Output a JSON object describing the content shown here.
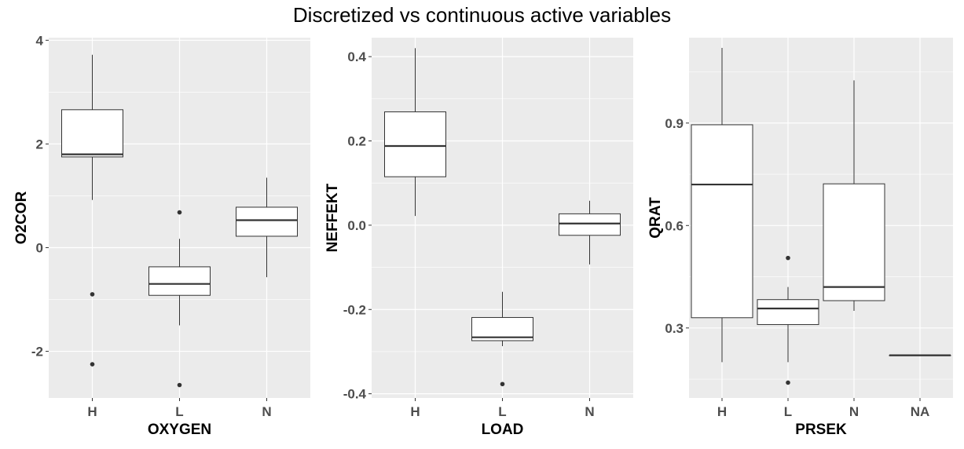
{
  "title": "Discretized vs continuous active variables",
  "colors": {
    "panel_background": "#ebebeb",
    "grid_major": "#ffffff",
    "box_fill": "#ffffff",
    "box_line": "#333333",
    "outlier": "#333333"
  },
  "chart_data": [
    {
      "type": "boxplot",
      "xlabel": "OXYGEN",
      "ylabel": "O2COR",
      "categories": [
        "H",
        "L",
        "N"
      ],
      "ylim": [
        -2.9,
        4.05
      ],
      "yticks": [
        -2,
        0,
        2,
        4
      ],
      "ytick_labels": [
        "-2",
        "0",
        "2",
        "4"
      ],
      "boxes": [
        {
          "category": "H",
          "whisker_low": 0.92,
          "q1": 1.75,
          "median": 1.8,
          "q3": 2.66,
          "whisker_high": 3.72,
          "outliers": [
            -0.9,
            -2.25
          ]
        },
        {
          "category": "L",
          "whisker_low": -1.5,
          "q1": -0.92,
          "median": -0.7,
          "q3": -0.37,
          "whisker_high": 0.17,
          "outliers": [
            0.68,
            -2.65
          ]
        },
        {
          "category": "N",
          "whisker_low": -0.57,
          "q1": 0.22,
          "median": 0.53,
          "q3": 0.78,
          "whisker_high": 1.35,
          "outliers": []
        }
      ]
    },
    {
      "type": "boxplot",
      "xlabel": "LOAD",
      "ylabel": "NEFFEKT",
      "categories": [
        "H",
        "L",
        "N"
      ],
      "ylim": [
        -0.41,
        0.445
      ],
      "yticks": [
        -0.4,
        -0.2,
        0.0,
        0.2,
        0.4
      ],
      "ytick_labels": [
        "-0.4",
        "-0.2",
        "0.0",
        "0.2",
        "0.4"
      ],
      "boxes": [
        {
          "category": "H",
          "whisker_low": 0.022,
          "q1": 0.115,
          "median": 0.188,
          "q3": 0.269,
          "whisker_high": 0.42,
          "outliers": []
        },
        {
          "category": "L",
          "whisker_low": -0.287,
          "q1": -0.274,
          "median": -0.266,
          "q3": -0.219,
          "whisker_high": -0.158,
          "outliers": [
            -0.377
          ]
        },
        {
          "category": "N",
          "whisker_low": -0.093,
          "q1": -0.024,
          "median": 0.004,
          "q3": 0.027,
          "whisker_high": 0.058,
          "outliers": []
        }
      ]
    },
    {
      "type": "boxplot",
      "xlabel": "PRSEK",
      "ylabel": "QRAT",
      "categories": [
        "H",
        "L",
        "N",
        "NA"
      ],
      "ylim": [
        0.095,
        1.15
      ],
      "yticks": [
        0.3,
        0.6,
        0.9
      ],
      "ytick_labels": [
        "0.3",
        "0.6",
        "0.9"
      ],
      "boxes": [
        {
          "category": "H",
          "whisker_low": 0.2,
          "q1": 0.33,
          "median": 0.72,
          "q3": 0.895,
          "whisker_high": 1.12,
          "outliers": []
        },
        {
          "category": "L",
          "whisker_low": 0.2,
          "q1": 0.31,
          "median": 0.357,
          "q3": 0.383,
          "whisker_high": 0.42,
          "outliers": [
            0.505,
            0.14
          ]
        },
        {
          "category": "N",
          "whisker_low": 0.35,
          "q1": 0.38,
          "median": 0.42,
          "q3": 0.722,
          "whisker_high": 1.025,
          "outliers": []
        },
        {
          "category": "NA",
          "whisker_low": 0.22,
          "q1": 0.22,
          "median": 0.22,
          "q3": 0.22,
          "whisker_high": 0.22,
          "outliers": []
        }
      ]
    }
  ]
}
